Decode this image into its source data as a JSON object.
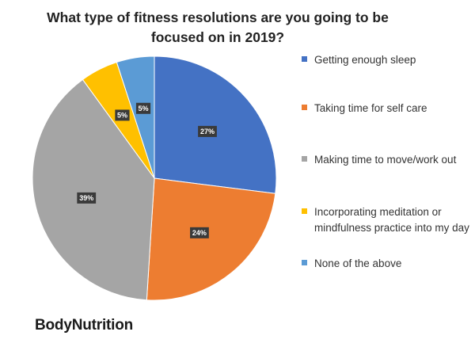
{
  "chart_data": {
    "type": "pie",
    "title": "What type of fitness resolutions are you going to be focused on in 2019?",
    "slices": [
      {
        "label": "Getting enough sleep",
        "value": 27,
        "display": "27%",
        "color": "#4472C4"
      },
      {
        "label": "Taking time for self care",
        "value": 24,
        "display": "24%",
        "color": "#ED7D31"
      },
      {
        "label": "Making time to move/work out",
        "value": 39,
        "display": "39%",
        "color": "#A5A5A5"
      },
      {
        "label": "Incorporating meditation or mindfulness practice into my day",
        "value": 5,
        "display": "5%",
        "color": "#FFC000"
      },
      {
        "label": "None of the above",
        "value": 5,
        "display": "5%",
        "color": "#5B9BD5"
      }
    ],
    "start_angle": "12 o'clock",
    "direction": "clockwise",
    "legend_position": "right",
    "data_label_style": "white text on dark box"
  },
  "brand": {
    "name": "BodyNutrition"
  }
}
